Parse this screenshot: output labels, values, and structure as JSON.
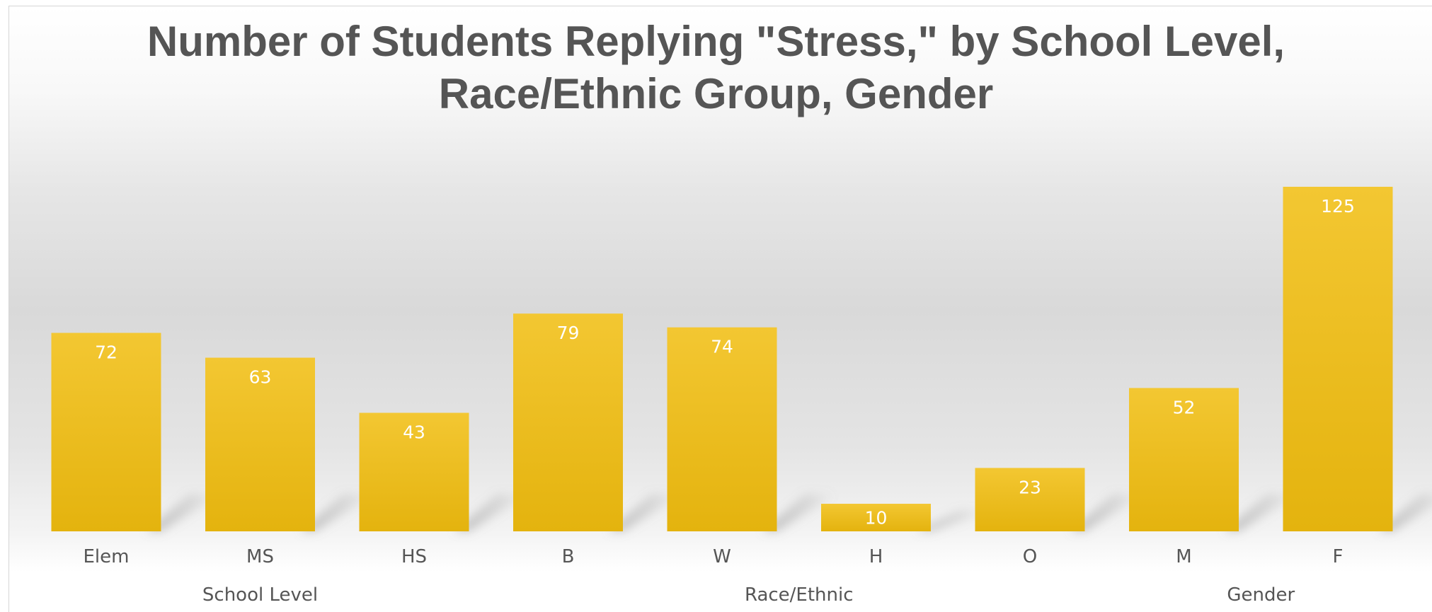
{
  "chart_data": {
    "type": "bar",
    "title_lines": [
      "Number of Students Replying \"Stress,\" by School Level,",
      "Race/Ethnic Group, Gender"
    ],
    "categories": [
      "Elem",
      "MS",
      "HS",
      "B",
      "W",
      "H",
      "O",
      "M",
      "F"
    ],
    "values": [
      72,
      63,
      43,
      79,
      74,
      10,
      23,
      52,
      125
    ],
    "groups": [
      {
        "label": "School Level",
        "categories": [
          "Elem",
          "MS",
          "HS"
        ]
      },
      {
        "label": "Race/Ethnic",
        "categories": [
          "B",
          "W",
          "H",
          "O"
        ]
      },
      {
        "label": "Gender",
        "categories": [
          "M",
          "F"
        ]
      }
    ],
    "ylim": [
      0,
      125
    ],
    "grid": false,
    "legend": "none",
    "bar_color": "#eec425",
    "xlabel": "",
    "ylabel": ""
  }
}
